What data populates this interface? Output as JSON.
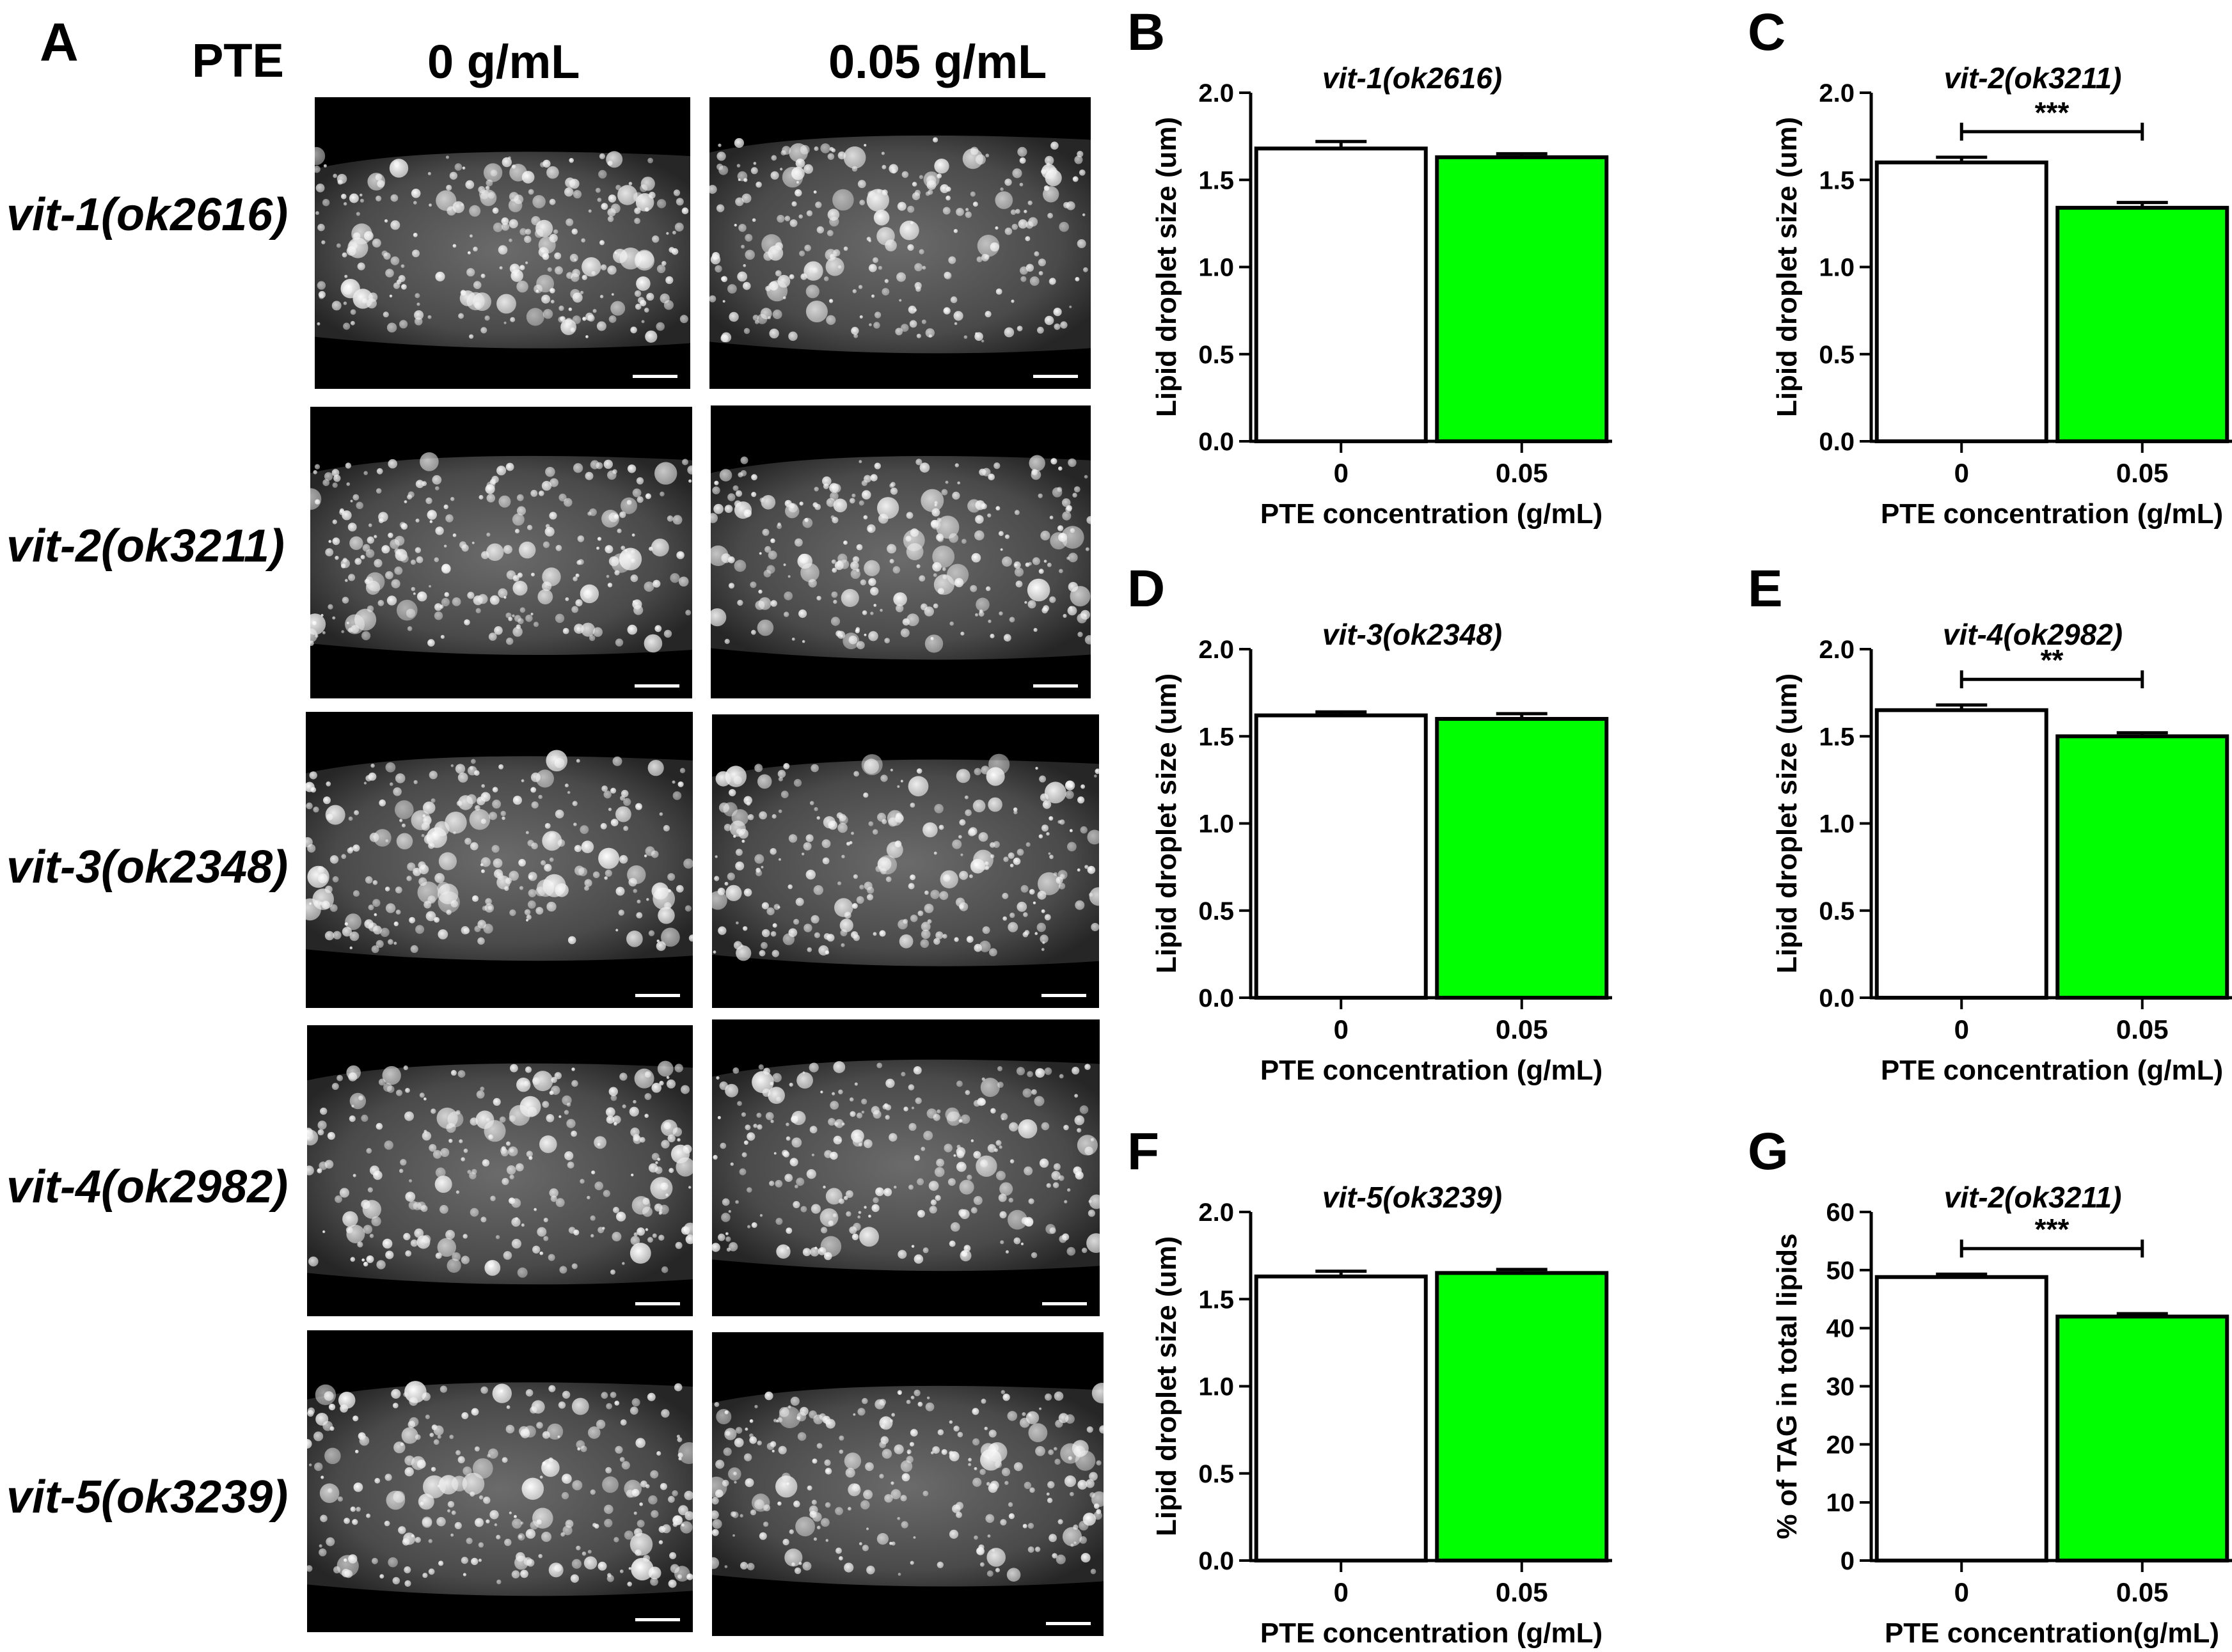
{
  "panelA": {
    "letter": "A",
    "header_pte": "PTE",
    "header_col0": "0 g/mL",
    "header_col1": "0.05 g/mL",
    "rows": [
      {
        "label": "vit-1(ok2616)"
      },
      {
        "label": "vit-2(ok3211)"
      },
      {
        "label": "vit-3(ok2348)"
      },
      {
        "label": "vit-4(ok2982)"
      },
      {
        "label": "vit-5(ok3239)"
      }
    ]
  },
  "colors": {
    "control_bar": "#ffffff",
    "treated_bar": "#00ff00",
    "axis": "#000000",
    "micrograph_bg": "#000000",
    "droplet": "#e8e8e8"
  },
  "chart_data": [
    {
      "panel": "B",
      "type": "bar",
      "title": "vit-1(ok2616)",
      "xlabel": "PTE concentration (g/mL)",
      "ylabel": "Lipid droplet size (um)",
      "categories": [
        "0",
        "0.05"
      ],
      "values": [
        1.68,
        1.63
      ],
      "errors": [
        0.04,
        0.02
      ],
      "ylim": [
        0,
        2.0
      ],
      "yticks": [
        "0.0",
        "0.5",
        "1.0",
        "1.5",
        "2.0"
      ],
      "significance": ""
    },
    {
      "panel": "C",
      "type": "bar",
      "title": "vit-2(ok3211)",
      "xlabel": "PTE concentration (g/mL)",
      "ylabel": "Lipid droplet size (um)",
      "categories": [
        "0",
        "0.05"
      ],
      "values": [
        1.6,
        1.34
      ],
      "errors": [
        0.03,
        0.03
      ],
      "ylim": [
        0,
        2.0
      ],
      "yticks": [
        "0.0",
        "0.5",
        "1.0",
        "1.5",
        "2.0"
      ],
      "significance": "***"
    },
    {
      "panel": "D",
      "type": "bar",
      "title": "vit-3(ok2348)",
      "xlabel": "PTE concentration (g/mL)",
      "ylabel": "Lipid droplet size (um)",
      "categories": [
        "0",
        "0.05"
      ],
      "values": [
        1.62,
        1.6
      ],
      "errors": [
        0.02,
        0.03
      ],
      "ylim": [
        0,
        2.0
      ],
      "yticks": [
        "0.0",
        "0.5",
        "1.0",
        "1.5",
        "2.0"
      ],
      "significance": ""
    },
    {
      "panel": "E",
      "type": "bar",
      "title": "vit-4(ok2982)",
      "xlabel": "PTE concentration (g/mL)",
      "ylabel": "Lipid droplet size (um)",
      "categories": [
        "0",
        "0.05"
      ],
      "values": [
        1.65,
        1.5
      ],
      "errors": [
        0.03,
        0.02
      ],
      "ylim": [
        0,
        2.0
      ],
      "yticks": [
        "0.0",
        "0.5",
        "1.0",
        "1.5",
        "2.0"
      ],
      "significance": "**"
    },
    {
      "panel": "F",
      "type": "bar",
      "title": "vit-5(ok3239)",
      "xlabel": "PTE concentration (g/mL)",
      "ylabel": "Lipid droplet size (um)",
      "categories": [
        "0",
        "0.05"
      ],
      "values": [
        1.63,
        1.65
      ],
      "errors": [
        0.03,
        0.02
      ],
      "ylim": [
        0,
        2.0
      ],
      "yticks": [
        "0.0",
        "0.5",
        "1.0",
        "1.5",
        "2.0"
      ],
      "significance": ""
    },
    {
      "panel": "G",
      "type": "bar",
      "title": "vit-2(ok3211)",
      "xlabel": "PTE concentration(g/mL)",
      "ylabel": "% of TAG in total lipids",
      "categories": [
        "0",
        "0.05"
      ],
      "values": [
        48.8,
        42.0
      ],
      "errors": [
        0.5,
        0.5
      ],
      "ylim": [
        0,
        60
      ],
      "yticks": [
        "0",
        "10",
        "20",
        "30",
        "40",
        "50",
        "60"
      ],
      "significance": "***"
    }
  ]
}
